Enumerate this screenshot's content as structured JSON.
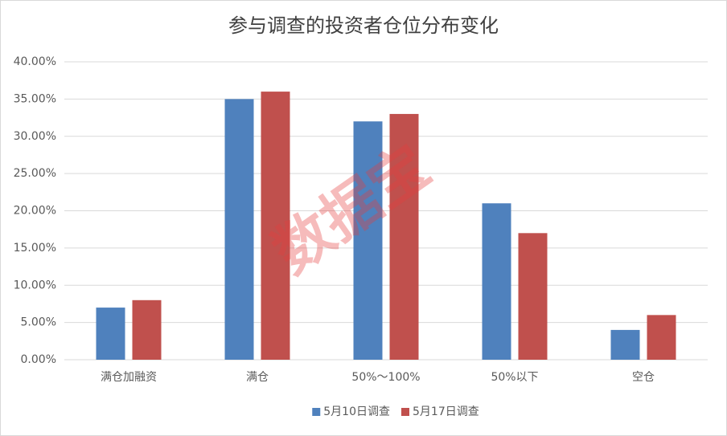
{
  "chart_data": {
    "type": "bar",
    "title": "参与调查的投资者仓位分布变化",
    "categories": [
      "满仓加融资",
      "满仓",
      "50%～100%",
      "50%以下",
      "空仓"
    ],
    "series": [
      {
        "name": "5月10日调查",
        "color": "#4f81bd",
        "values": [
          7,
          35,
          32,
          21,
          4
        ]
      },
      {
        "name": "5月17日调查",
        "color": "#c0504d",
        "values": [
          8,
          36,
          33,
          17,
          6
        ]
      }
    ],
    "ylim": [
      0,
      40
    ],
    "yticks": [
      {
        "value": 0,
        "label": "0.00%"
      },
      {
        "value": 5,
        "label": "5.00%"
      },
      {
        "value": 10,
        "label": "10.00%"
      },
      {
        "value": 15,
        "label": "15.00%"
      },
      {
        "value": 20,
        "label": "20.00%"
      },
      {
        "value": 25,
        "label": "25.00%"
      },
      {
        "value": 30,
        "label": "30.00%"
      },
      {
        "value": 35,
        "label": "35.00%"
      },
      {
        "value": 40,
        "label": "40.00%"
      }
    ],
    "grid": true,
    "legend": "bottom",
    "watermark": "数据宝"
  }
}
